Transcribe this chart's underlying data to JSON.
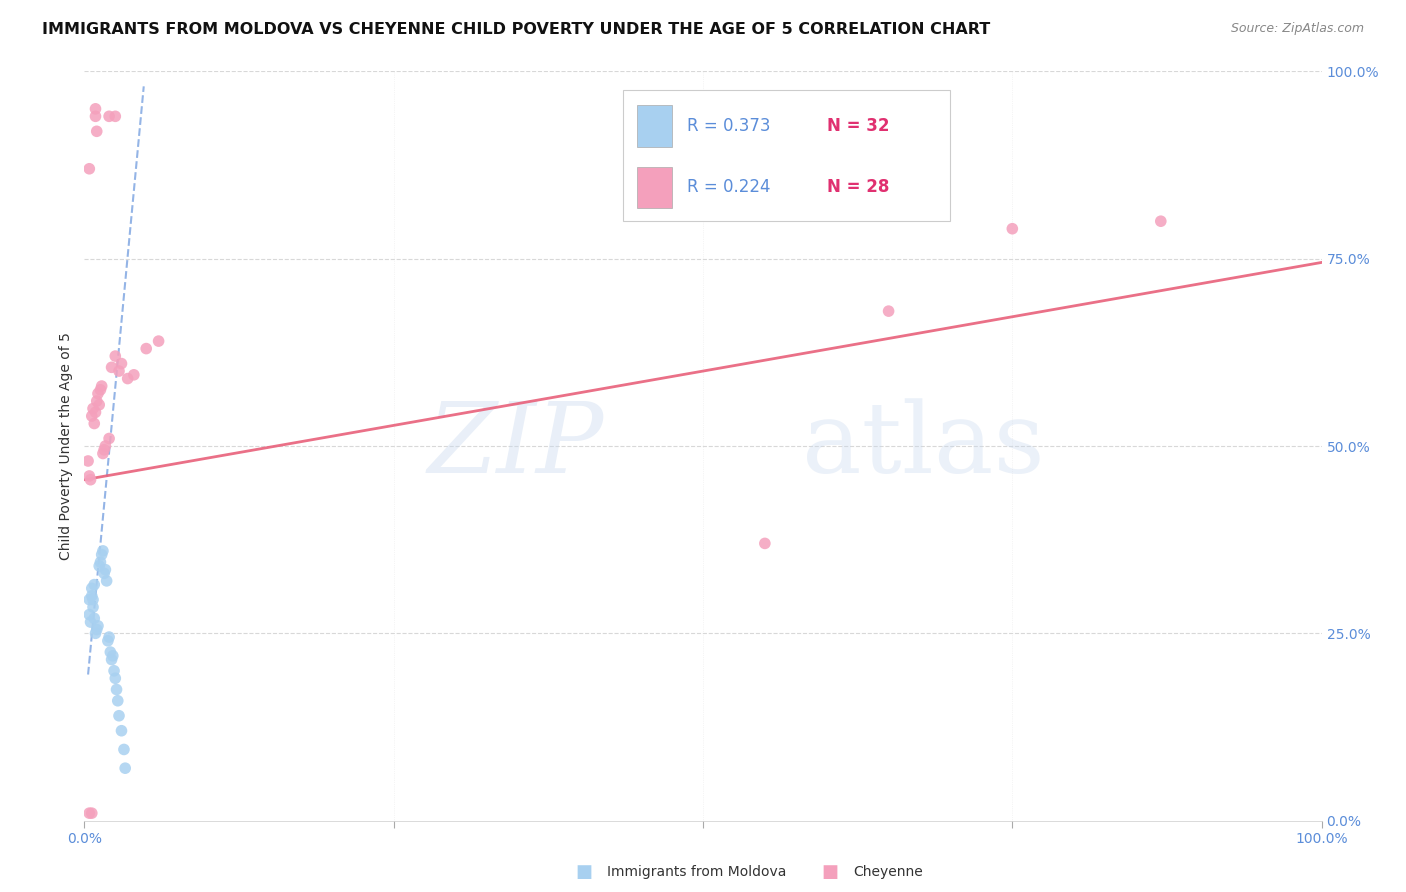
{
  "title": "IMMIGRANTS FROM MOLDOVA VS CHEYENNE CHILD POVERTY UNDER THE AGE OF 5 CORRELATION CHART",
  "source": "Source: ZipAtlas.com",
  "ylabel": "Child Poverty Under the Age of 5",
  "legend_label1": "Immigrants from Moldova",
  "legend_label2": "Cheyenne",
  "legend_r1": "R = 0.373",
  "legend_n1": "N = 32",
  "legend_r2": "R = 0.224",
  "legend_n2": "N = 28",
  "blue_color": "#a8d0f0",
  "pink_color": "#f4a0bc",
  "blue_line_color": "#5b8dd9",
  "pink_line_color": "#e8607a",
  "r_color": "#5b8dd9",
  "n_color": "#e03070",
  "watermark_zip": "ZIP",
  "watermark_atlas": "atlas",
  "blue_scatter_x": [
    0.004,
    0.004,
    0.005,
    0.006,
    0.006,
    0.007,
    0.007,
    0.008,
    0.008,
    0.009,
    0.01,
    0.011,
    0.012,
    0.013,
    0.014,
    0.015,
    0.016,
    0.017,
    0.018,
    0.019,
    0.02,
    0.021,
    0.022,
    0.023,
    0.024,
    0.025,
    0.026,
    0.027,
    0.028,
    0.03,
    0.032,
    0.033
  ],
  "blue_scatter_y": [
    0.295,
    0.275,
    0.265,
    0.3,
    0.31,
    0.295,
    0.285,
    0.27,
    0.315,
    0.25,
    0.255,
    0.26,
    0.34,
    0.345,
    0.355,
    0.36,
    0.33,
    0.335,
    0.32,
    0.24,
    0.245,
    0.225,
    0.215,
    0.22,
    0.2,
    0.19,
    0.175,
    0.16,
    0.14,
    0.12,
    0.095,
    0.07
  ],
  "pink_scatter_x": [
    0.003,
    0.004,
    0.005,
    0.006,
    0.007,
    0.008,
    0.009,
    0.01,
    0.011,
    0.012,
    0.013,
    0.014,
    0.015,
    0.016,
    0.017,
    0.02,
    0.022,
    0.025,
    0.028,
    0.03,
    0.035,
    0.04,
    0.05,
    0.06,
    0.55,
    0.65,
    0.75,
    0.87
  ],
  "pink_scatter_y": [
    0.48,
    0.46,
    0.455,
    0.54,
    0.55,
    0.53,
    0.545,
    0.56,
    0.57,
    0.555,
    0.575,
    0.58,
    0.49,
    0.495,
    0.5,
    0.51,
    0.605,
    0.62,
    0.6,
    0.61,
    0.59,
    0.595,
    0.63,
    0.64,
    0.37,
    0.68,
    0.79,
    0.8
  ],
  "pink_top_scatter_x": [
    0.004,
    0.009,
    0.009,
    0.01,
    0.02,
    0.025
  ],
  "pink_top_scatter_y": [
    0.87,
    0.94,
    0.95,
    0.92,
    0.94,
    0.94
  ],
  "pink_bottom_scatter_x": [
    0.004,
    0.006
  ],
  "pink_bottom_scatter_y": [
    0.01,
    0.01
  ],
  "blue_line_x": [
    0.003,
    0.048
  ],
  "blue_line_y": [
    0.195,
    0.98
  ],
  "pink_line_x": [
    0.0,
    1.0
  ],
  "pink_line_y": [
    0.455,
    0.745
  ],
  "xlim": [
    0.0,
    1.0
  ],
  "ylim": [
    0.0,
    1.0
  ],
  "background_color": "#ffffff",
  "grid_color": "#d8d8d8",
  "x_ticks": [
    0.0,
    0.25,
    0.5,
    0.75,
    1.0
  ],
  "x_tick_labels": [
    "0.0%",
    "",
    "",
    "",
    "100.0%"
  ],
  "y_ticks_right": [
    0.0,
    0.25,
    0.5,
    0.75,
    1.0
  ],
  "y_tick_labels_right": [
    "0.0%",
    "25.0%",
    "50.0%",
    "75.0%",
    "100.0%"
  ]
}
